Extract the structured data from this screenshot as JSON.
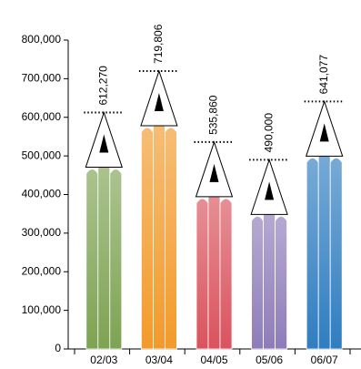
{
  "chart_data": {
    "type": "pencil-bar",
    "categories": [
      "02/03",
      "03/04",
      "04/05",
      "05/06",
      "06/07"
    ],
    "values": [
      612270,
      719806,
      535860,
      490000,
      641077
    ],
    "value_labels": [
      "612,270",
      "719,806",
      "535,860",
      "490,000",
      "641,077"
    ],
    "colors": [
      "#7ea352",
      "#f39a2b",
      "#d9535d",
      "#8e7cb9",
      "#2f7dc0"
    ],
    "ylim": [
      0,
      800000
    ],
    "yticks": [
      0,
      {
        "value": 100000,
        "label": "100,000"
      },
      {
        "value": 200000,
        "label": "200,000"
      },
      {
        "value": 300000,
        "label": "300,000"
      },
      {
        "value": 400000,
        "label": "400,000"
      },
      {
        "value": 500000,
        "label": "500,000"
      },
      {
        "value": 600000,
        "label": "600,000"
      },
      {
        "value": 700000,
        "label": "700,000"
      },
      {
        "value": 800000,
        "label": "800,000"
      }
    ]
  }
}
